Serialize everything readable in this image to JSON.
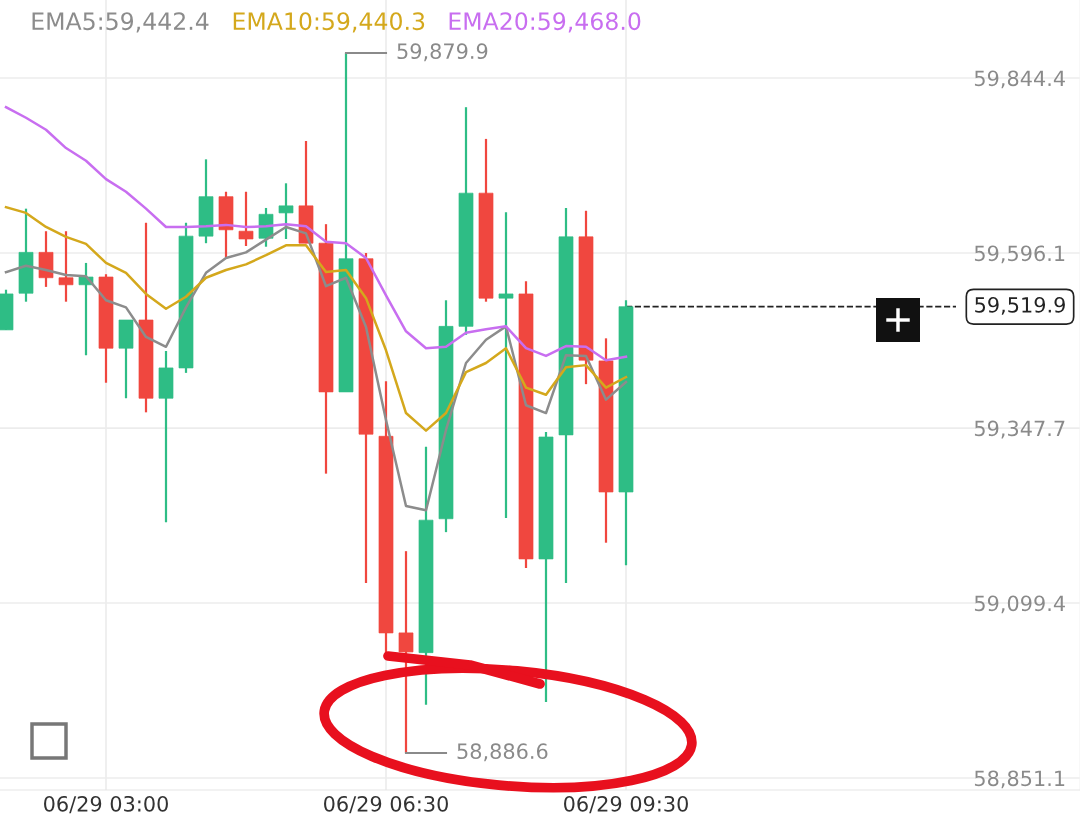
{
  "chart_data": {
    "type": "candlestick",
    "categories": [
      null,
      null,
      null,
      null,
      null,
      "06/29 03:00",
      null,
      null,
      null,
      null,
      null,
      null,
      null,
      null,
      null,
      null,
      null,
      null,
      null,
      "06/29 06:30",
      null,
      null,
      null,
      null,
      null,
      null,
      null,
      null,
      null,
      null,
      null,
      "06/29 09:30"
    ],
    "ohlc": [
      [
        59487,
        59544,
        59487,
        59538
      ],
      [
        59539,
        59659,
        59527,
        59597
      ],
      [
        59597,
        59627,
        59548,
        59561
      ],
      [
        59561,
        59627,
        59527,
        59551
      ],
      [
        59551,
        59582,
        59451,
        59562
      ],
      [
        59562,
        59566,
        59412,
        59461
      ],
      [
        59461,
        59501,
        59390,
        59501
      ],
      [
        59501,
        59639,
        59370,
        59390
      ],
      [
        59390,
        59457,
        59214,
        59433
      ],
      [
        59433,
        59639,
        59426,
        59620
      ],
      [
        59620,
        59729,
        59610,
        59676
      ],
      [
        59676,
        59683,
        59590,
        59629
      ],
      [
        59627,
        59683,
        59606,
        59616
      ],
      [
        59617,
        59660,
        59605,
        59651
      ],
      [
        59653,
        59695,
        59616,
        59663
      ],
      [
        59663,
        59755,
        59610,
        59610
      ],
      [
        59610,
        59637,
        59283,
        59399
      ],
      [
        59399,
        59879.9,
        59399,
        59588
      ],
      [
        59588,
        59596,
        59128,
        59339
      ],
      [
        59336,
        59414,
        59023,
        59057
      ],
      [
        59057,
        59173,
        58886.6,
        59030
      ],
      [
        59029,
        59321,
        58955,
        59217
      ],
      [
        59219,
        59529,
        59200,
        59492
      ],
      [
        59492,
        59803,
        59480,
        59681
      ],
      [
        59681,
        59758,
        59527,
        59532
      ],
      [
        59532,
        59654,
        59220,
        59538
      ],
      [
        59538,
        59556,
        59149,
        59162
      ],
      [
        59162,
        59342,
        58959,
        59335
      ],
      [
        59338,
        59660,
        59128,
        59619
      ],
      [
        59619,
        59656,
        59410,
        59444
      ],
      [
        59443,
        59475,
        59185,
        59257
      ],
      [
        59257,
        59529,
        59153,
        59519.9
      ]
    ],
    "colors": [
      "#2ebd85",
      "#2ebd85",
      "#f0473f",
      "#f0473f",
      "#2ebd85",
      "#f0473f",
      "#2ebd85",
      "#f0473f",
      "#2ebd85",
      "#2ebd85",
      "#2ebd85",
      "#f0473f",
      "#f0473f",
      "#2ebd85",
      "#2ebd85",
      "#f0473f",
      "#f0473f",
      "#2ebd85",
      "#f0473f",
      "#f0473f",
      "#f0473f",
      "#2ebd85",
      "#2ebd85",
      "#2ebd85",
      "#f0473f",
      "#2ebd85",
      "#f0473f",
      "#2ebd85",
      "#2ebd85",
      "#f0473f",
      "#f0473f",
      "#2ebd85"
    ],
    "series": [
      {
        "type": "line",
        "name": "EMA5:59,442.4",
        "color": "#8c8c8c",
        "values": [
          59569,
          59578,
          59572,
          59565,
          59563,
          59529,
          59519,
          59477,
          59463,
          59519,
          59568,
          59589,
          59597,
          59615,
          59633,
          59624,
          59549,
          59561,
          59491,
          59359,
          59237,
          59231,
          59345,
          59440,
          59473,
          59492,
          59380,
          59369,
          59451,
          59450,
          59388,
          59413
        ]
      },
      {
        "type": "line",
        "name": "EMA10:59,440.3",
        "color": "#d4a81c",
        "values": [
          59661,
          59653,
          59633,
          59619,
          59609,
          59582,
          59568,
          59538,
          59517,
          59534,
          59561,
          59572,
          59580,
          59593,
          59607,
          59607,
          59569,
          59572,
          59532,
          59458,
          59369,
          59344,
          59369,
          59427,
          59440,
          59461,
          59405,
          59395,
          59434,
          59437,
          59405,
          59420
        ]
      },
      {
        "type": "line",
        "name": "EMA20:59,468.0",
        "color": "#c86ef0",
        "values": [
          59803,
          59788,
          59771,
          59745,
          59727,
          59701,
          59683,
          59659,
          59633,
          59633,
          59634,
          59636,
          59633,
          59634,
          59637,
          59634,
          59612,
          59610,
          59589,
          59536,
          59485,
          59461,
          59463,
          59483,
          59488,
          59492,
          59461,
          59450,
          59464,
          59463,
          59444,
          59449
        ]
      }
    ],
    "ylim": [
      58834.1,
      59955.1
    ],
    "yticks": [
      {
        "value": 58851.1,
        "label": "58,851.1"
      },
      {
        "value": 59099.4,
        "label": "59,099.4"
      },
      {
        "value": 59347.7,
        "label": "59,347.7"
      },
      {
        "value": 59596.1,
        "label": "59,596.1"
      },
      {
        "value": 59844.4,
        "label": "59,844.4"
      }
    ],
    "ref_lines": [
      {
        "axis": "y",
        "value": 59519.9,
        "label": "59,519.9",
        "color": "#222222",
        "line_style": "dashed"
      }
    ],
    "annotations": [
      "59,879.9",
      "58,886.6"
    ],
    "grid": true,
    "legend": "top"
  }
}
